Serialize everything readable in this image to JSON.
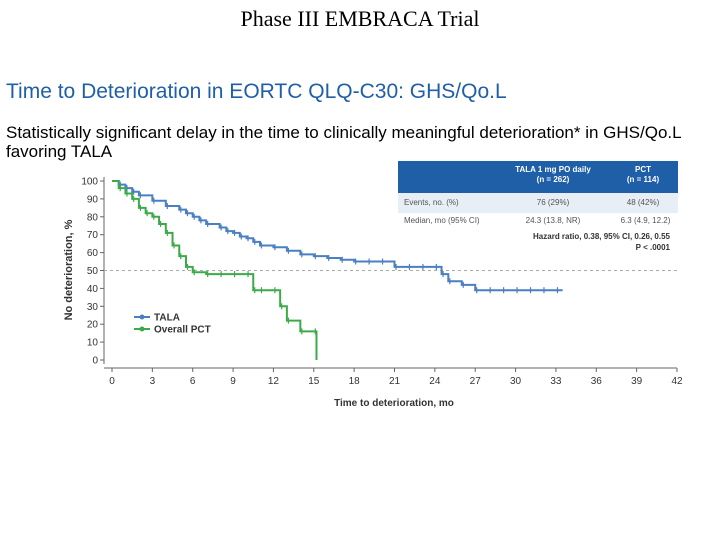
{
  "slide_title": "Phase III EMBRACA Trial",
  "table": {
    "col1": "TALA 1 mg PO daily",
    "col1_n": "(n = 262)",
    "col2": "PCT",
    "col2_n": "(n = 114)",
    "rows": [
      {
        "label": "Events, no. (%)",
        "v1": "76 (29%)",
        "v2": "48 (42%)"
      },
      {
        "label": "Median, mo (95% CI)",
        "v1": "24.3 (13.8, NR)",
        "v2": "6.3 (4.9, 12.2)"
      }
    ],
    "hazard_line1": "Hazard ratio, 0.38, 95% CI, 0.26, 0.55",
    "hazard_line2": "P < .0001"
  },
  "chart_data": {
    "type": "line",
    "title": "Time to Deterioration in EORTC QLQ-C30: GHS/Qo.L",
    "subtitle": "Statistically significant delay in the time to clinically meaningful deterioration* in GHS/Qo.L favoring TALA",
    "xlabel": "Time to deterioration, mo",
    "ylabel": "No deterioration, %",
    "xlim": [
      0,
      42
    ],
    "ylim": [
      0,
      100
    ],
    "xticks": [
      0,
      3,
      6,
      9,
      12,
      15,
      18,
      21,
      24,
      27,
      30,
      33,
      36,
      39,
      42
    ],
    "yticks": [
      0,
      10,
      20,
      30,
      40,
      50,
      60,
      70,
      80,
      90,
      100
    ],
    "reference_line": 50,
    "grid": false,
    "legend": "bottom-left",
    "series": [
      {
        "name": "TALA",
        "color": "#4a7fc1",
        "x": [
          0,
          0.5,
          1,
          1.5,
          2,
          3,
          4,
          5,
          5.5,
          6,
          6.5,
          7,
          8,
          8.5,
          9,
          9.5,
          10,
          10.5,
          11,
          12,
          13,
          14,
          15,
          16,
          17,
          18,
          19,
          20,
          21,
          22,
          23,
          24,
          24.5,
          25,
          26,
          27,
          28,
          29,
          30,
          31,
          32,
          33,
          33.5
        ],
        "y": [
          100,
          98,
          96,
          94,
          92,
          89,
          86,
          84,
          82,
          80,
          78,
          76,
          74,
          72,
          71,
          69,
          68,
          66,
          64,
          63,
          61,
          59,
          58,
          57,
          56,
          55,
          55,
          55,
          52,
          52,
          52,
          52,
          48,
          44,
          42,
          39,
          39,
          39,
          39,
          39,
          39,
          39,
          39
        ]
      },
      {
        "name": "Overall PCT",
        "color": "#3daa4a",
        "x": [
          0,
          0.5,
          1,
          1.5,
          2,
          2.5,
          3,
          3.5,
          4,
          4.5,
          5,
          5.5,
          6,
          7,
          8,
          9,
          10,
          10.5,
          11,
          12,
          12.5,
          13,
          14,
          15,
          15.2
        ],
        "y": [
          100,
          96,
          93,
          90,
          85,
          82,
          80,
          76,
          71,
          64,
          58,
          52,
          49,
          48,
          48,
          48,
          48,
          39,
          39,
          39,
          30,
          22,
          16,
          16,
          0
        ]
      }
    ]
  }
}
